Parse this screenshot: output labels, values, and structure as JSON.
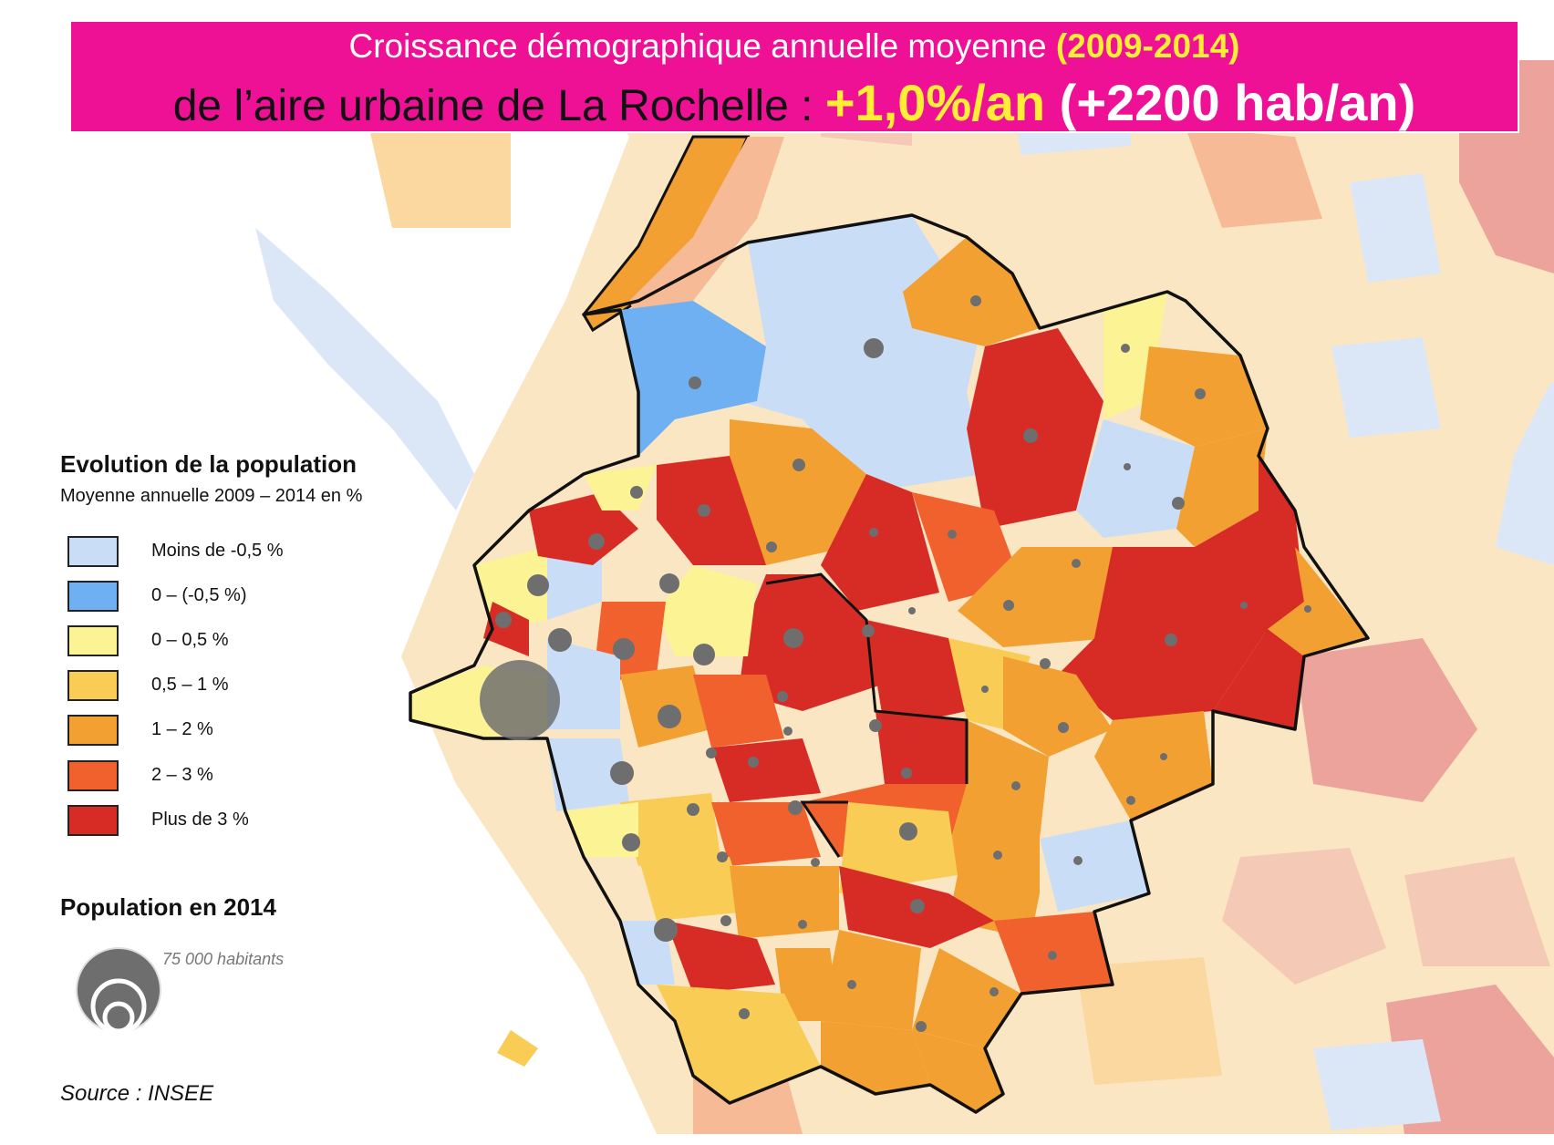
{
  "title": {
    "line1_text": "Croissance démographique annuelle moyenne ",
    "line1_highlight": "(2009-2014)",
    "line2_text": "de l’aire urbaine de La Rochelle : ",
    "line2_rate": "+1,0%/an",
    "line2_hab": " (+2200 hab/an)"
  },
  "legend": {
    "title": "Evolution de la population",
    "subtitle": "Moyenne annuelle 2009 – 2014 en %",
    "items": [
      {
        "label": "Moins de -0,5 %",
        "color": "#c9ddf7"
      },
      {
        "label": "0 – (-0,5 %)",
        "color": "#6fb0f2"
      },
      {
        "label": "0 – 0,5 %",
        "color": "#fbf394"
      },
      {
        "label": "0,5 – 1 %",
        "color": "#f8cc55"
      },
      {
        "label": "1 – 2 %",
        "color": "#f3a033"
      },
      {
        "label": "2 – 3 %",
        "color": "#f0612d"
      },
      {
        "label": "Plus de 3 %",
        "color": "#d62c25"
      }
    ]
  },
  "population": {
    "title": "Population en 2014",
    "note": "75 000 habitants"
  },
  "source": "Source : INSEE",
  "map": {
    "background_colors": [
      "#fde9c5",
      "#fbd8a0",
      "#f4c9b6",
      "#eba39c",
      "#dbe7f7",
      "#f6bb96"
    ],
    "dot_color": "#6e6e6e",
    "boundary_color": "#111111"
  }
}
